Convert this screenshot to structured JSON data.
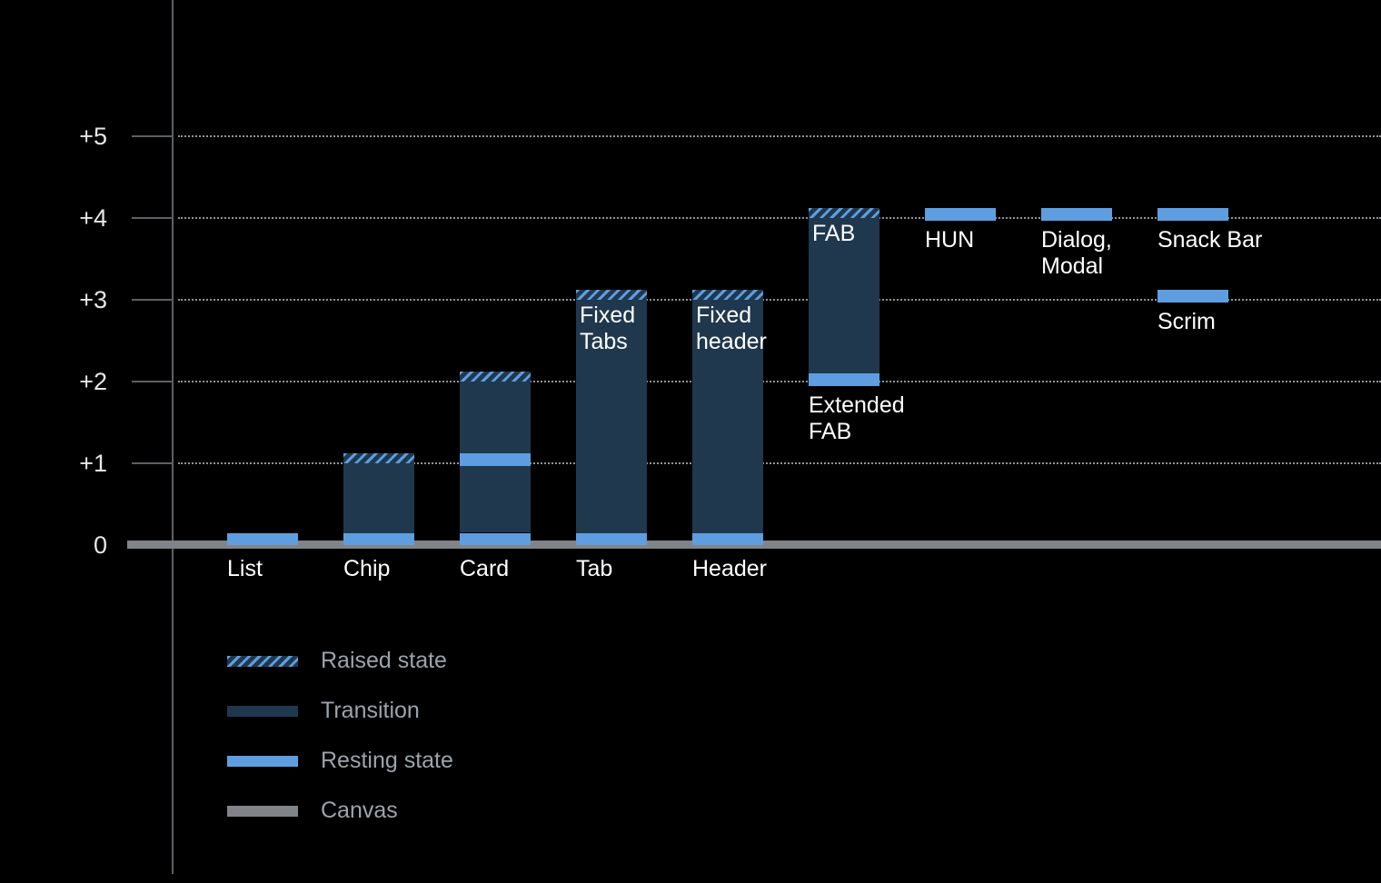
{
  "chart": {
    "colors": {
      "background": "#000000",
      "resting": "#5e9ee0",
      "transition": "#20384e",
      "canvas": "#808488",
      "grid": "#8f949a",
      "axis": "#5c6064",
      "tick_text": "#e6e6e6",
      "bar_label": "#ffffff",
      "legend_text": "#9ba4ab"
    }
  },
  "chart_data": {
    "type": "bar",
    "title": "",
    "xlabel": "",
    "ylabel": "",
    "ylim": [
      0,
      5.5
    ],
    "grid": "dotted-horizontal",
    "legend_position": "bottom-left",
    "yticks": [
      {
        "value": 0,
        "label": "0"
      },
      {
        "value": 1,
        "label": "+1"
      },
      {
        "value": 2,
        "label": "+2"
      },
      {
        "value": 3,
        "label": "+3"
      },
      {
        "value": 4,
        "label": "+4"
      },
      {
        "value": 5,
        "label": "+5"
      }
    ],
    "grid_values": [
      1,
      2,
      3,
      4,
      5
    ],
    "bars": [
      {
        "id": "list",
        "column": 0,
        "axis_label": "List",
        "segments": [
          {
            "kind": "resting",
            "from": 0,
            "to": 0.15
          }
        ]
      },
      {
        "id": "chip",
        "column": 1,
        "axis_label": "Chip",
        "segments": [
          {
            "kind": "resting",
            "from": 0,
            "to": 0.15
          },
          {
            "kind": "transition",
            "from": 0.15,
            "to": 1.0
          },
          {
            "kind": "raised",
            "from": 1.0,
            "to": 1.12
          }
        ]
      },
      {
        "id": "card",
        "column": 2,
        "axis_label": "Card",
        "segments": [
          {
            "kind": "resting",
            "from": 0,
            "to": 0.15
          },
          {
            "kind": "transition",
            "from": 0.15,
            "to": 0.97
          },
          {
            "kind": "resting",
            "from": 0.97,
            "to": 1.12
          },
          {
            "kind": "transition",
            "from": 1.12,
            "to": 2.0
          },
          {
            "kind": "raised",
            "from": 2.0,
            "to": 2.12
          }
        ]
      },
      {
        "id": "tab",
        "column": 3,
        "axis_label": "Tab",
        "inner_label": "Fixed\nTabs",
        "segments": [
          {
            "kind": "resting",
            "from": 0,
            "to": 0.15
          },
          {
            "kind": "transition",
            "from": 0.15,
            "to": 3.0
          },
          {
            "kind": "raised",
            "from": 3.0,
            "to": 3.12
          }
        ]
      },
      {
        "id": "header",
        "column": 4,
        "axis_label": "Header",
        "inner_label": "Fixed\nheader",
        "segments": [
          {
            "kind": "resting",
            "from": 0,
            "to": 0.15
          },
          {
            "kind": "transition",
            "from": 0.15,
            "to": 3.0
          },
          {
            "kind": "raised",
            "from": 3.0,
            "to": 3.12
          }
        ]
      },
      {
        "id": "extended-fab",
        "column": 5,
        "inner_label": "FAB",
        "below_label": "Extended\nFAB",
        "segments": [
          {
            "kind": "resting",
            "from": 1.95,
            "to": 2.1
          },
          {
            "kind": "transition",
            "from": 2.1,
            "to": 4.0
          },
          {
            "kind": "raised",
            "from": 4.0,
            "to": 4.12
          }
        ]
      },
      {
        "id": "hun",
        "column": 6,
        "below_label": "HUN",
        "segments": [
          {
            "kind": "resting",
            "from": 3.97,
            "to": 4.12
          }
        ]
      },
      {
        "id": "dialog-modal",
        "column": 7,
        "below_label": "Dialog,\nModal",
        "segments": [
          {
            "kind": "resting",
            "from": 3.97,
            "to": 4.12
          }
        ]
      },
      {
        "id": "snack-bar",
        "column": 8,
        "below_label": "Snack Bar",
        "segments": [
          {
            "kind": "resting",
            "from": 3.97,
            "to": 4.12
          }
        ]
      },
      {
        "id": "scrim",
        "column": 8,
        "below_label": "Scrim",
        "segments": [
          {
            "kind": "resting",
            "from": 2.97,
            "to": 3.12
          }
        ]
      }
    ],
    "legend": [
      {
        "kind": "raised",
        "label": "Raised state"
      },
      {
        "kind": "transition",
        "label": "Transition"
      },
      {
        "kind": "resting",
        "label": "Resting state"
      },
      {
        "kind": "canvas",
        "label": "Canvas"
      }
    ]
  }
}
